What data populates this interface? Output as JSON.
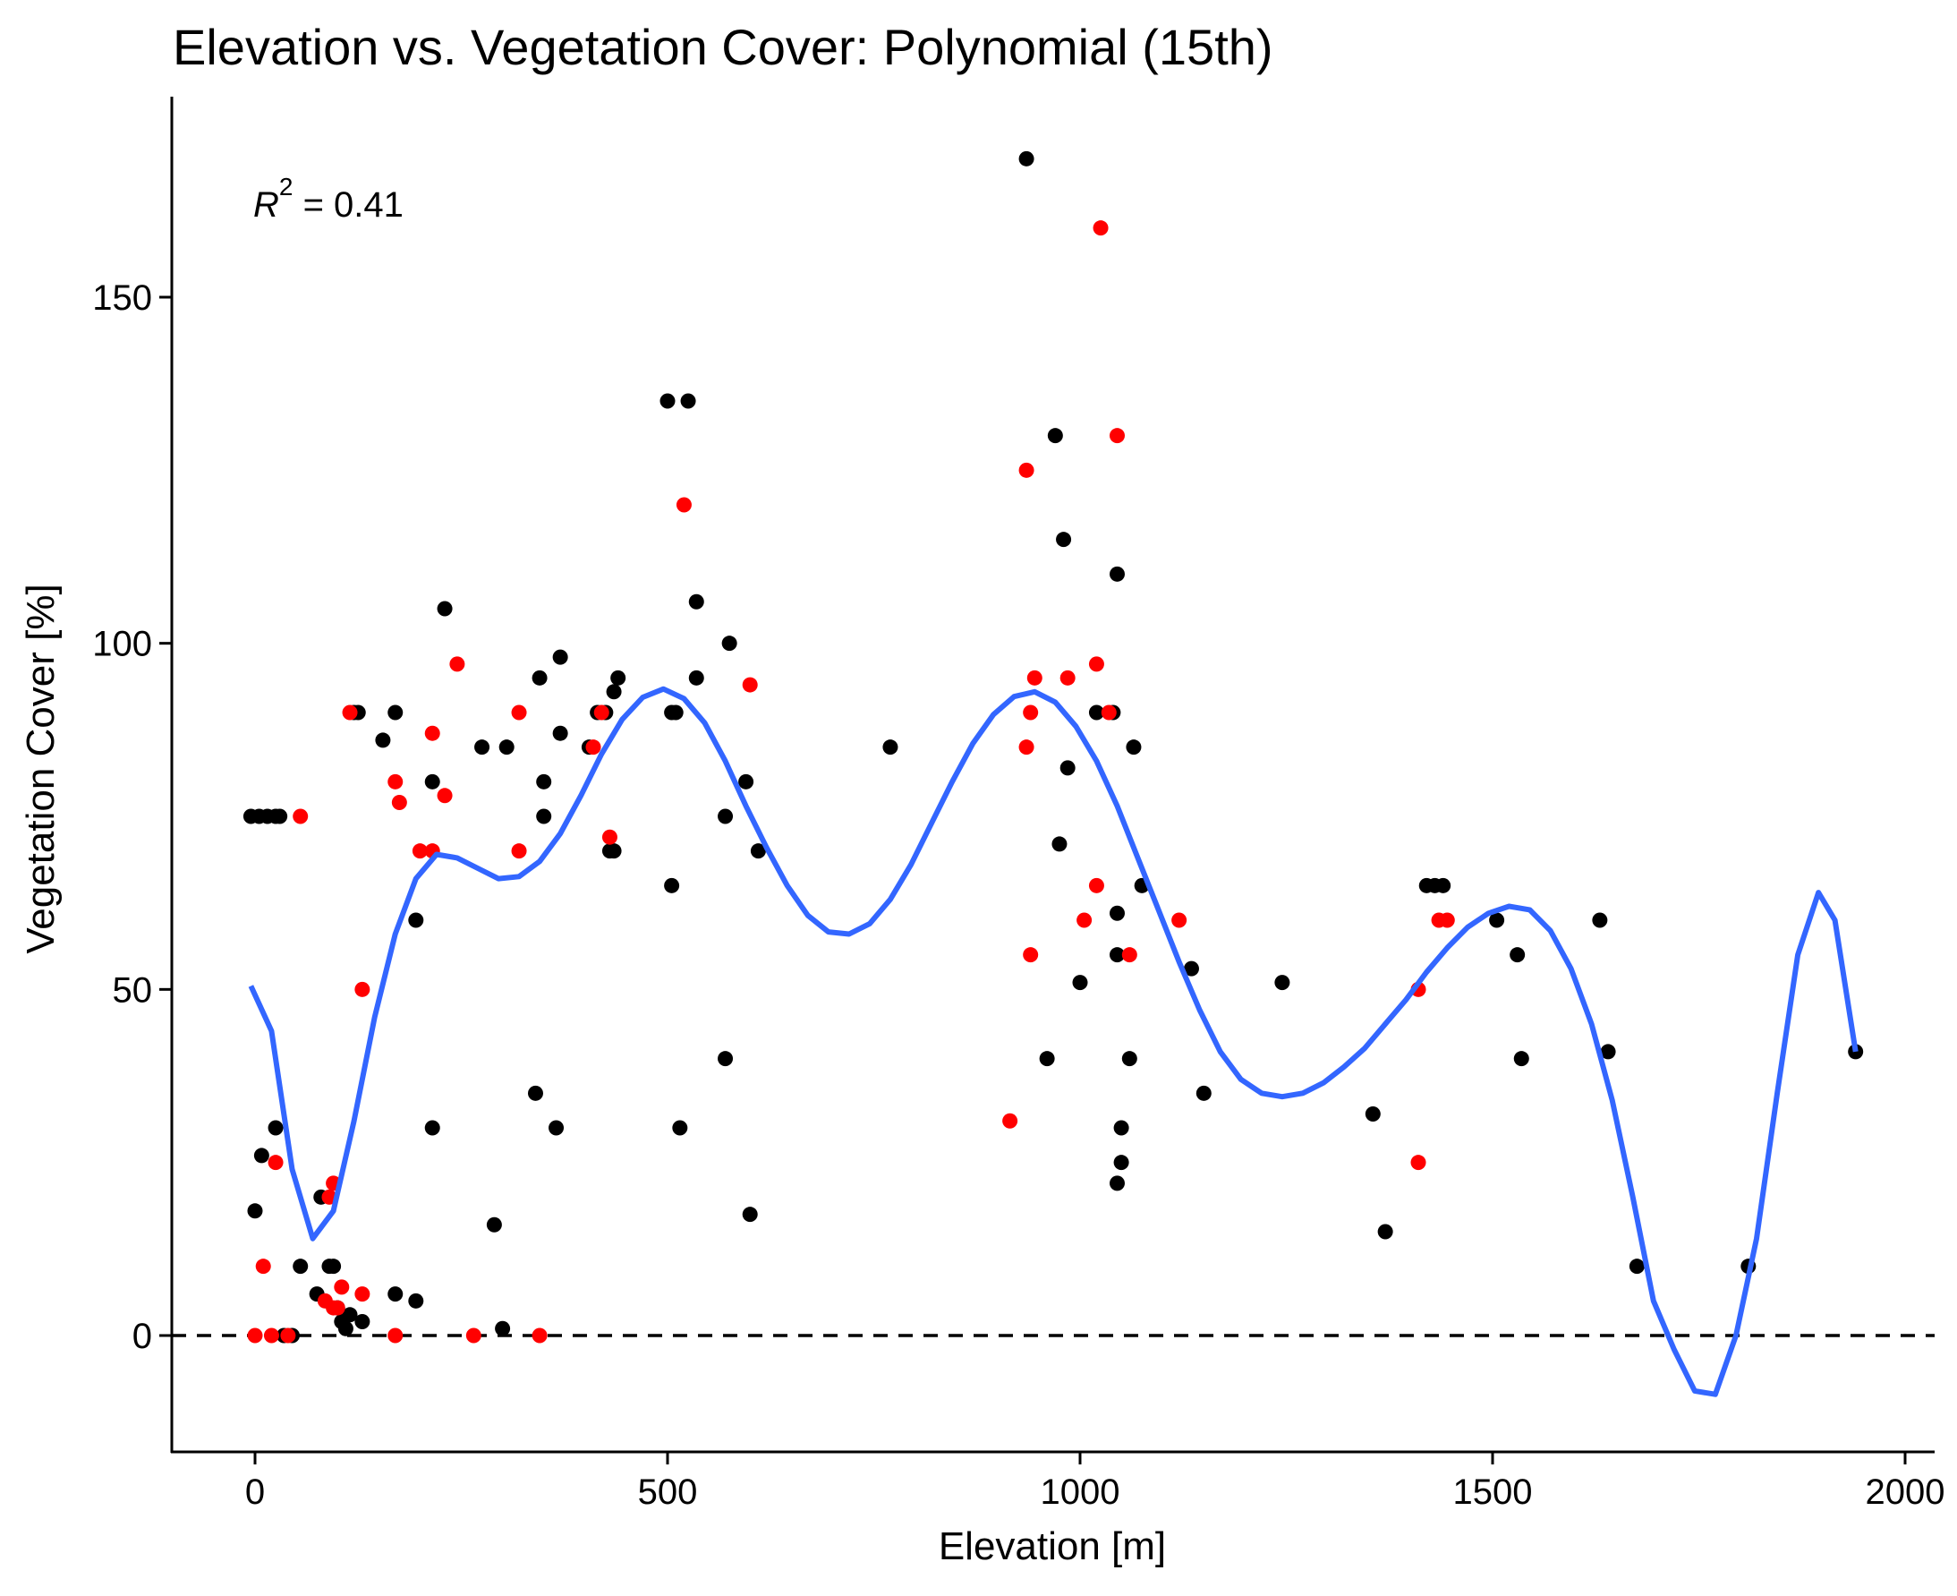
{
  "chart_data": {
    "type": "scatter",
    "title": "Elevation vs. Vegetation Cover: Polynomial (15th)",
    "xlabel": "Elevation [m]",
    "ylabel": "Vegetation Cover [%]",
    "xlim": [
      -100,
      2040
    ],
    "ylim": [
      -17,
      179
    ],
    "xticks": [
      0,
      500,
      1000,
      1500,
      2000
    ],
    "xtick_labels": [
      "0",
      "500",
      "1000",
      "1500",
      "2000"
    ],
    "yticks": [
      0,
      50,
      100,
      150
    ],
    "ytick_labels": [
      "0",
      "50",
      "100",
      "150"
    ],
    "grid": false,
    "annotation": {
      "symbol": "R",
      "superscript": "2",
      "text": " = 0.41"
    },
    "reference_line": {
      "y": 0,
      "style": "dashed",
      "color": "#000000"
    },
    "colors": {
      "black_points": "#000000",
      "red_points": "#FF0000",
      "fit_line": "#3366FF"
    },
    "series": [
      {
        "color": "#000000",
        "points": [
          [
            -5,
            75
          ],
          [
            5,
            75
          ],
          [
            15,
            75
          ],
          [
            25,
            75
          ],
          [
            30,
            75
          ],
          [
            0,
            18
          ],
          [
            8,
            26
          ],
          [
            25,
            30
          ],
          [
            35,
            0
          ],
          [
            45,
            0
          ],
          [
            55,
            10
          ],
          [
            75,
            6
          ],
          [
            80,
            20
          ],
          [
            90,
            10
          ],
          [
            95,
            10
          ],
          [
            100,
            4
          ],
          [
            105,
            2
          ],
          [
            110,
            1
          ],
          [
            115,
            3
          ],
          [
            130,
            2
          ],
          [
            120,
            90
          ],
          [
            125,
            90
          ],
          [
            155,
            86
          ],
          [
            170,
            90
          ],
          [
            170,
            6
          ],
          [
            195,
            60
          ],
          [
            195,
            5
          ],
          [
            215,
            80
          ],
          [
            215,
            30
          ],
          [
            230,
            105
          ],
          [
            275,
            85
          ],
          [
            290,
            16
          ],
          [
            300,
            1
          ],
          [
            305,
            85
          ],
          [
            340,
            35
          ],
          [
            345,
            95
          ],
          [
            350,
            80
          ],
          [
            350,
            75
          ],
          [
            365,
            30
          ],
          [
            370,
            98
          ],
          [
            370,
            87
          ],
          [
            405,
            85
          ],
          [
            415,
            90
          ],
          [
            425,
            90
          ],
          [
            430,
            70
          ],
          [
            435,
            70
          ],
          [
            435,
            93
          ],
          [
            440,
            95
          ],
          [
            500,
            135
          ],
          [
            505,
            65
          ],
          [
            505,
            90
          ],
          [
            510,
            90
          ],
          [
            515,
            30
          ],
          [
            525,
            135
          ],
          [
            535,
            106
          ],
          [
            535,
            95
          ],
          [
            570,
            75
          ],
          [
            570,
            40
          ],
          [
            575,
            100
          ],
          [
            595,
            80
          ],
          [
            600,
            17.5
          ],
          [
            610,
            70
          ],
          [
            770,
            85
          ],
          [
            935,
            170
          ],
          [
            960,
            40
          ],
          [
            970,
            130
          ],
          [
            975,
            71
          ],
          [
            980,
            115
          ],
          [
            985,
            82
          ],
          [
            1000,
            51
          ],
          [
            1020,
            90
          ],
          [
            1040,
            90
          ],
          [
            1045,
            55
          ],
          [
            1045,
            61
          ],
          [
            1045,
            110
          ],
          [
            1045,
            22
          ],
          [
            1050,
            30
          ],
          [
            1050,
            25
          ],
          [
            1060,
            40
          ],
          [
            1065,
            85
          ],
          [
            1075,
            65
          ],
          [
            1135,
            53
          ],
          [
            1150,
            35
          ],
          [
            1245,
            51
          ],
          [
            1355,
            32
          ],
          [
            1370,
            15
          ],
          [
            1420,
            65
          ],
          [
            1430,
            65
          ],
          [
            1440,
            65
          ],
          [
            1505,
            60
          ],
          [
            1530,
            55
          ],
          [
            1535,
            40
          ],
          [
            1630,
            60
          ],
          [
            1640,
            41
          ],
          [
            1675,
            10
          ],
          [
            1810,
            10
          ],
          [
            1940,
            41
          ]
        ]
      },
      {
        "color": "#FF0000",
        "points": [
          [
            0,
            0
          ],
          [
            10,
            10
          ],
          [
            20,
            0
          ],
          [
            25,
            25
          ],
          [
            40,
            0
          ],
          [
            55,
            75
          ],
          [
            85,
            5
          ],
          [
            90,
            20
          ],
          [
            95,
            22
          ],
          [
            95,
            4
          ],
          [
            100,
            4
          ],
          [
            105,
            7
          ],
          [
            115,
            90
          ],
          [
            130,
            6
          ],
          [
            130,
            50
          ],
          [
            170,
            0
          ],
          [
            170,
            80
          ],
          [
            175,
            77
          ],
          [
            200,
            70
          ],
          [
            215,
            70
          ],
          [
            215,
            87
          ],
          [
            230,
            78
          ],
          [
            245,
            97
          ],
          [
            265,
            0
          ],
          [
            320,
            90
          ],
          [
            320,
            70
          ],
          [
            345,
            0
          ],
          [
            410,
            85
          ],
          [
            420,
            90
          ],
          [
            430,
            72
          ],
          [
            520,
            120
          ],
          [
            600,
            94
          ],
          [
            915,
            31
          ],
          [
            935,
            85
          ],
          [
            935,
            125
          ],
          [
            940,
            55
          ],
          [
            940,
            90
          ],
          [
            945,
            95
          ],
          [
            985,
            95
          ],
          [
            1005,
            60
          ],
          [
            1020,
            97
          ],
          [
            1020,
            65
          ],
          [
            1025,
            160
          ],
          [
            1035,
            90
          ],
          [
            1045,
            130
          ],
          [
            1060,
            55
          ],
          [
            1120,
            60
          ],
          [
            1410,
            25
          ],
          [
            1410,
            50
          ],
          [
            1435,
            60
          ],
          [
            1445,
            60
          ]
        ]
      },
      {
        "name": "",
        "color": "#3366FF",
        "type": "line",
        "points": [
          [
            -5,
            50.5
          ],
          [
            20,
            44
          ],
          [
            45,
            24
          ],
          [
            70,
            14
          ],
          [
            95,
            18
          ],
          [
            120,
            31
          ],
          [
            145,
            46
          ],
          [
            170,
            58
          ],
          [
            195,
            66
          ],
          [
            220,
            69.5
          ],
          [
            245,
            69
          ],
          [
            270,
            67.5
          ],
          [
            295,
            66
          ],
          [
            320,
            66.3
          ],
          [
            345,
            68.5
          ],
          [
            370,
            72.5
          ],
          [
            395,
            78
          ],
          [
            420,
            84
          ],
          [
            445,
            89
          ],
          [
            470,
            92.2
          ],
          [
            495,
            93.4
          ],
          [
            520,
            92
          ],
          [
            545,
            88.5
          ],
          [
            570,
            83
          ],
          [
            595,
            76.5
          ],
          [
            620,
            70.5
          ],
          [
            645,
            65
          ],
          [
            670,
            60.7
          ],
          [
            695,
            58.3
          ],
          [
            720,
            58
          ],
          [
            745,
            59.5
          ],
          [
            770,
            63
          ],
          [
            795,
            68
          ],
          [
            820,
            74
          ],
          [
            845,
            80
          ],
          [
            870,
            85.5
          ],
          [
            895,
            89.7
          ],
          [
            920,
            92.3
          ],
          [
            945,
            93
          ],
          [
            970,
            91.5
          ],
          [
            995,
            88
          ],
          [
            1020,
            83
          ],
          [
            1045,
            76.5
          ],
          [
            1070,
            69
          ],
          [
            1095,
            61.5
          ],
          [
            1120,
            54
          ],
          [
            1145,
            47
          ],
          [
            1170,
            41
          ],
          [
            1195,
            37
          ],
          [
            1220,
            35
          ],
          [
            1245,
            34.5
          ],
          [
            1270,
            35
          ],
          [
            1295,
            36.5
          ],
          [
            1320,
            38.8
          ],
          [
            1345,
            41.5
          ],
          [
            1370,
            45
          ],
          [
            1395,
            48.5
          ],
          [
            1420,
            52.5
          ],
          [
            1445,
            56
          ],
          [
            1470,
            59
          ],
          [
            1495,
            61
          ],
          [
            1520,
            62
          ],
          [
            1545,
            61.5
          ],
          [
            1570,
            58.5
          ],
          [
            1595,
            53
          ],
          [
            1620,
            45
          ],
          [
            1645,
            34
          ],
          [
            1670,
            20
          ],
          [
            1695,
            5
          ],
          [
            1720,
            -2
          ],
          [
            1745,
            -8
          ],
          [
            1770,
            -8.5
          ],
          [
            1795,
            0
          ],
          [
            1820,
            14
          ],
          [
            1845,
            35
          ],
          [
            1870,
            55
          ],
          [
            1895,
            64
          ],
          [
            1915,
            60
          ],
          [
            1940,
            41
          ]
        ]
      }
    ]
  }
}
